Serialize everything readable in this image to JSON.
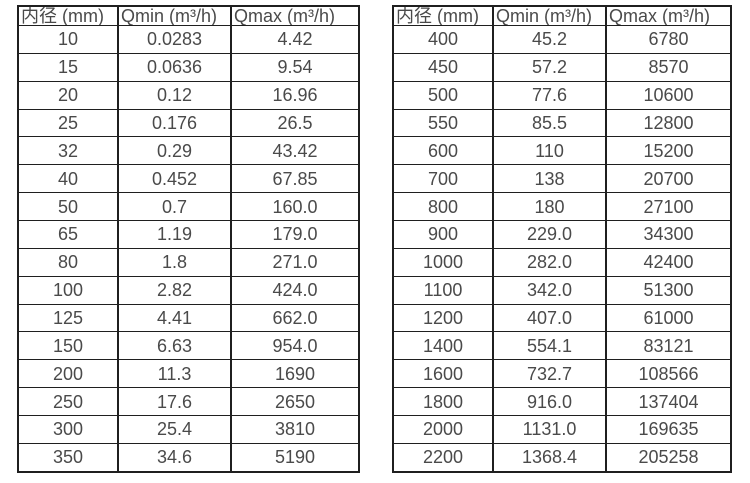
{
  "page": {
    "background": "#ffffff",
    "text_color": "#4a4a4a",
    "border_color": "#1f1f1f"
  },
  "tables": [
    {
      "name": "flow-range-table-dn10-350",
      "headers": [
        "内径 (mm)",
        "Qmin (m³/h)",
        "Qmax (m³/h)"
      ],
      "rows": [
        [
          "10",
          "0.0283",
          "4.42"
        ],
        [
          "15",
          "0.0636",
          "9.54"
        ],
        [
          "20",
          "0.12",
          "16.96"
        ],
        [
          "25",
          "0.176",
          "26.5"
        ],
        [
          "32",
          "0.29",
          "43.42"
        ],
        [
          "40",
          "0.452",
          "67.85"
        ],
        [
          "50",
          "0.7",
          "160.0"
        ],
        [
          "65",
          "1.19",
          "179.0"
        ],
        [
          "80",
          "1.8",
          "271.0"
        ],
        [
          "100",
          "2.82",
          "424.0"
        ],
        [
          "125",
          "4.41",
          "662.0"
        ],
        [
          "150",
          "6.63",
          "954.0"
        ],
        [
          "200",
          "11.3",
          "1690"
        ],
        [
          "250",
          "17.6",
          "2650"
        ],
        [
          "300",
          "25.4",
          "3810"
        ],
        [
          "350",
          "34.6",
          "5190"
        ]
      ]
    },
    {
      "name": "flow-range-table-dn400-2200",
      "headers": [
        "内径 (mm)",
        "Qmin (m³/h)",
        "Qmax (m³/h)"
      ],
      "rows": [
        [
          "400",
          "45.2",
          "6780"
        ],
        [
          "450",
          "57.2",
          "8570"
        ],
        [
          "500",
          "77.6",
          "10600"
        ],
        [
          "550",
          "85.5",
          "12800"
        ],
        [
          "600",
          "110",
          "15200"
        ],
        [
          "700",
          "138",
          "20700"
        ],
        [
          "800",
          "180",
          "27100"
        ],
        [
          "900",
          "229.0",
          "34300"
        ],
        [
          "1000",
          "282.0",
          "42400"
        ],
        [
          "1100",
          "342.0",
          "51300"
        ],
        [
          "1200",
          "407.0",
          "61000"
        ],
        [
          "1400",
          "554.1",
          "83121"
        ],
        [
          "1600",
          "732.7",
          "108566"
        ],
        [
          "1800",
          "916.0",
          "137404"
        ],
        [
          "2000",
          "1131.0",
          "169635"
        ],
        [
          "2200",
          "1368.4",
          "205258"
        ]
      ]
    }
  ]
}
